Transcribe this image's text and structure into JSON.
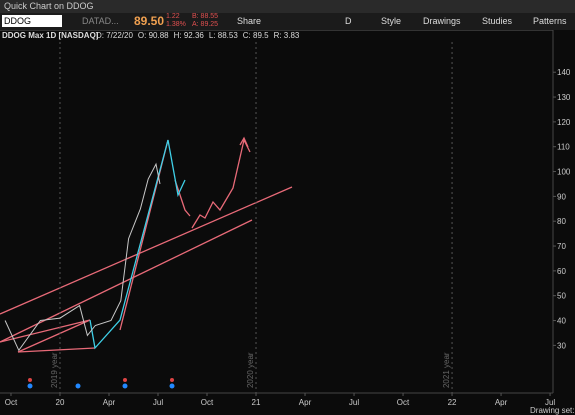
{
  "window": {
    "title": "Quick Chart on DDOG"
  },
  "toolbar": {
    "symbol": "DDOG",
    "description": "DATAD...",
    "last": "89.50",
    "change": "1.22",
    "change_pct": "1.38%",
    "bid": "B: 88.55",
    "ask": "A: 89.25",
    "buttons": [
      "Share",
      "D",
      "Style",
      "Drawings",
      "Studies",
      "Patterns"
    ]
  },
  "chart_data": {
    "type": "line",
    "title": "DDOG Max 1D [NASDAQ]",
    "info": [
      "D: 7/22/20",
      "O: 90.88",
      "H: 92.36",
      "L: 88.53",
      "C: 89.5",
      "R: 3.83"
    ],
    "x": [
      2019.72,
      2019.79,
      2019.9,
      2020.0,
      2020.1,
      2020.14,
      2020.18,
      2020.26,
      2020.31,
      2020.35,
      2020.41,
      2020.45,
      2020.49,
      2020.51
    ],
    "values": [
      40,
      28,
      40,
      41,
      46,
      34,
      38,
      40,
      48,
      73,
      85,
      97,
      103,
      95
    ],
    "color": "#c8c8c8",
    "xlim": [
      2019.694,
      2022.515
    ],
    "xticks": [
      {
        "value": 2019.75,
        "label": "Oct"
      },
      {
        "value": 2020.0,
        "label": "20"
      },
      {
        "value": 2020.25,
        "label": "Apr"
      },
      {
        "value": 2020.5,
        "label": "Jul"
      },
      {
        "value": 2020.75,
        "label": "Oct"
      },
      {
        "value": 2021.0,
        "label": "21"
      },
      {
        "value": 2021.25,
        "label": "Apr"
      },
      {
        "value": 2021.5,
        "label": "Jul"
      },
      {
        "value": 2021.75,
        "label": "Oct"
      },
      {
        "value": 2022.0,
        "label": "22"
      },
      {
        "value": 2022.25,
        "label": "Apr"
      },
      {
        "value": 2022.5,
        "label": "Jul"
      }
    ],
    "ylim": [
      8,
      157
    ],
    "yticks": [
      30,
      40,
      50,
      60,
      70,
      80,
      90,
      100,
      110,
      120,
      130,
      140
    ],
    "year_labels": [
      "2019 year",
      "2020 year",
      "2021 year"
    ],
    "footer": "Drawing set: Def"
  }
}
